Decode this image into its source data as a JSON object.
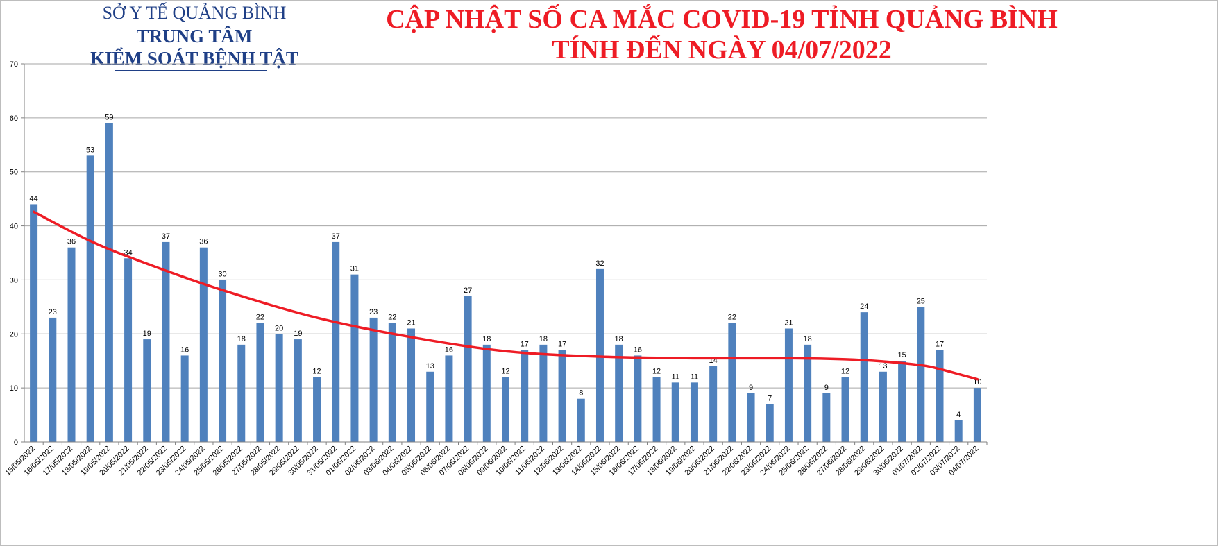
{
  "header": {
    "org_line1": "SỞ Y TẾ QUẢNG BÌNH",
    "org_line2": "TRUNG TÂM",
    "org_line3": "KIỂM SOÁT BỆNH TẬT",
    "title_line1": "CẬP NHẬT SỐ CA MẮC COVID-19 TỈNH QUẢNG BÌNH",
    "title_line2": "TÍNH ĐẾN NGÀY 04/07/2022"
  },
  "colors": {
    "bar": "#4f81bd",
    "trend": "#ee1c25",
    "grid": "#a6a6a6",
    "title": "#ee1c25",
    "org": "#1f3f86"
  },
  "chart_data": {
    "type": "bar",
    "title": "CẬP NHẬT SỐ CA MẮC COVID-19 TỈNH QUẢNG BÌNH TÍNH ĐẾN NGÀY 04/07/2022",
    "xlabel": "",
    "ylabel": "",
    "ylim": [
      0,
      70
    ],
    "yticks": [
      0,
      10,
      20,
      30,
      40,
      50,
      60,
      70
    ],
    "grid": true,
    "legend": "none",
    "categories": [
      "15/05/2022",
      "16/05/2022",
      "17/05/2022",
      "18/05/2022",
      "19/05/2022",
      "20/05/2022",
      "21/05/2022",
      "22/05/2022",
      "23/05/2022",
      "24/05/2022",
      "25/05/2022",
      "26/05/2022",
      "27/05/2022",
      "28/05/2022",
      "29/05/2022",
      "30/05/2022",
      "31/05/2022",
      "01/06/2022",
      "02/06/2022",
      "03/06/2022",
      "04/06/2022",
      "05/06/2022",
      "06/06/2022",
      "07/06/2022",
      "08/06/2022",
      "09/06/2022",
      "10/06/2022",
      "11/06/2022",
      "12/06/2022",
      "13/06/2022",
      "14/06/2022",
      "15/06/2022",
      "16/06/2022",
      "17/06/2022",
      "18/06/2022",
      "19/06/2022",
      "20/06/2022",
      "21/06/2022",
      "22/06/2022",
      "23/06/2022",
      "24/06/2022",
      "25/06/2022",
      "26/06/2022",
      "27/06/2022",
      "28/06/2022",
      "29/06/2022",
      "30/06/2022",
      "01/07/2022",
      "02/07/2022",
      "03/07/2022",
      "04/07/2022"
    ],
    "values": [
      44,
      23,
      36,
      53,
      59,
      34,
      19,
      37,
      16,
      36,
      30,
      18,
      22,
      20,
      19,
      12,
      37,
      31,
      23,
      22,
      21,
      13,
      16,
      27,
      18,
      12,
      17,
      18,
      17,
      8,
      32,
      18,
      16,
      12,
      11,
      11,
      14,
      22,
      9,
      7,
      21,
      18,
      9,
      12,
      24,
      13,
      15,
      25,
      17,
      4,
      10
    ],
    "trendline": {
      "x_index": [
        0,
        3,
        6,
        10,
        15,
        20,
        25,
        30,
        35,
        40,
        43,
        45,
        47,
        48,
        50
      ],
      "y": [
        42.6,
        37.2,
        33.0,
        28.1,
        23.0,
        19.4,
        16.8,
        15.8,
        15.5,
        15.5,
        15.3,
        14.9,
        14.2,
        13.5,
        11.6
      ]
    }
  }
}
